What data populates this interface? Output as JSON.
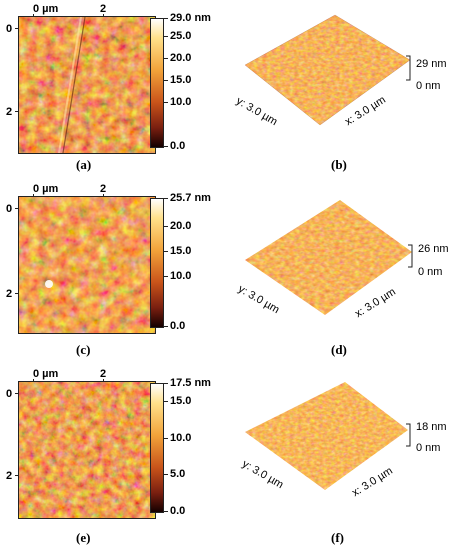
{
  "panels": [
    {
      "id": "a",
      "caption": "(a)",
      "x_ticks": [
        "0 µm",
        "2"
      ],
      "y_ticks": [
        "0",
        "2"
      ],
      "colorbar": {
        "labels": [
          "29.0 nm",
          "25.0",
          "20.0",
          "15.0",
          "10.0",
          "0.0"
        ],
        "values": [
          29.0,
          25.0,
          20.0,
          15.0,
          10.0,
          0.0
        ],
        "max": 29.0
      }
    },
    {
      "id": "b",
      "caption": "(b)",
      "z_top": "29 nm",
      "z_bottom": "0 nm",
      "y_axis": "y: 3.0 µm",
      "x_axis": "x: 3.0 µm"
    },
    {
      "id": "c",
      "caption": "(c)",
      "x_ticks": [
        "0 µm",
        "2"
      ],
      "y_ticks": [
        "0",
        "2"
      ],
      "colorbar": {
        "labels": [
          "25.7 nm",
          "20.0",
          "15.0",
          "10.0",
          "0.0"
        ],
        "values": [
          25.7,
          20.0,
          15.0,
          10.0,
          0.0
        ],
        "max": 25.7
      }
    },
    {
      "id": "d",
      "caption": "(d)",
      "z_top": "26 nm",
      "z_bottom": "0 nm",
      "y_axis": "y: 3.0 µm",
      "x_axis": "x: 3.0 µm"
    },
    {
      "id": "e",
      "caption": "(e)",
      "x_ticks": [
        "0 µm",
        "2"
      ],
      "y_ticks": [
        "0",
        "2"
      ],
      "colorbar": {
        "labels": [
          "17.5 nm",
          "15.0",
          "10.0",
          "5.0",
          "0.0"
        ],
        "values": [
          17.5,
          15.0,
          10.0,
          5.0,
          0.0
        ],
        "max": 17.5
      }
    },
    {
      "id": "f",
      "caption": "(f)",
      "z_top": "18 nm",
      "z_bottom": "0 nm",
      "y_axis": "y: 3.0 µm",
      "x_axis": "x: 3.0 µm"
    }
  ],
  "colors": {
    "low": "#140000",
    "mid": "#c9541a",
    "high": "#ffe08a",
    "peak": "#ffffff"
  }
}
